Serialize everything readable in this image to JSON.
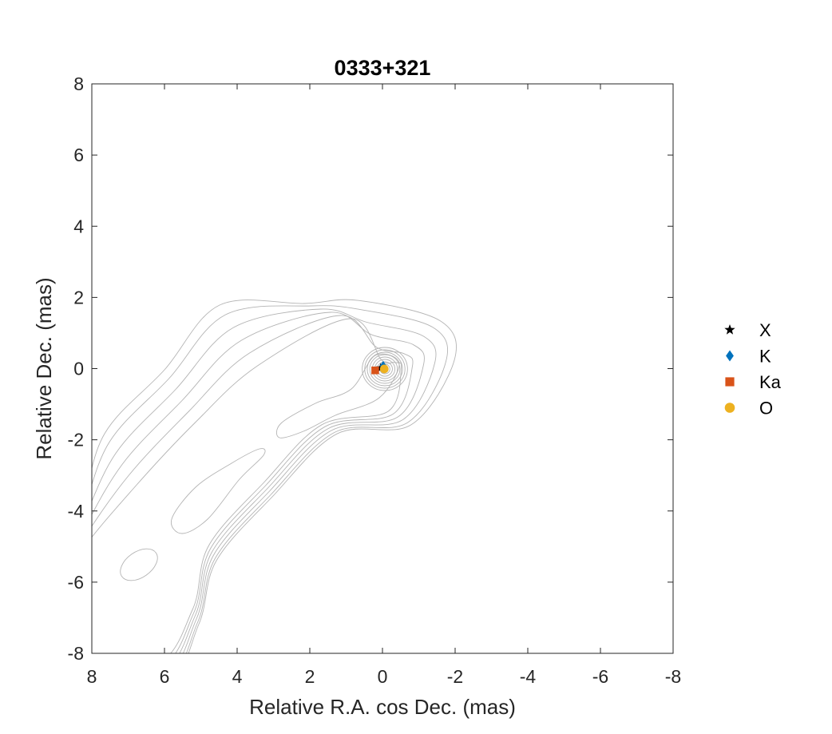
{
  "chart_data": {
    "type": "scatter",
    "title": "0333+321",
    "xlabel": "Relative R.A. cos Dec. (mas)",
    "ylabel": "Relative Dec. (mas)",
    "xlim": [
      8,
      -8
    ],
    "ylim": [
      -8,
      8
    ],
    "x_reversed": true,
    "xticks": [
      8,
      6,
      4,
      2,
      0,
      -2,
      -4,
      -6,
      -8
    ],
    "yticks": [
      8,
      6,
      4,
      2,
      0,
      -2,
      -4,
      -6,
      -8
    ],
    "xtick_labels": [
      "8",
      "6",
      "4",
      "2",
      "0",
      "-2",
      "-4",
      "-6",
      "-8"
    ],
    "ytick_labels": [
      "8",
      "6",
      "4",
      "2",
      "0",
      "-2",
      "-4",
      "-6",
      "-8"
    ],
    "grid": false,
    "legend_position": "outside-right",
    "contour_color": "#b4b4b4",
    "series": [
      {
        "name": "X",
        "marker": "star",
        "color": "#000000",
        "x": [
          0.05
        ],
        "y": [
          0.02
        ]
      },
      {
        "name": "K",
        "marker": "diamond",
        "color": "#0072bd",
        "x": [
          -0.02
        ],
        "y": [
          0.08
        ]
      },
      {
        "name": "Ka",
        "marker": "square",
        "color": "#d95319",
        "x": [
          0.2
        ],
        "y": [
          -0.05
        ]
      },
      {
        "name": "O",
        "marker": "circle",
        "color": "#edb120",
        "x": [
          -0.05
        ],
        "y": [
          -0.01
        ]
      }
    ]
  }
}
